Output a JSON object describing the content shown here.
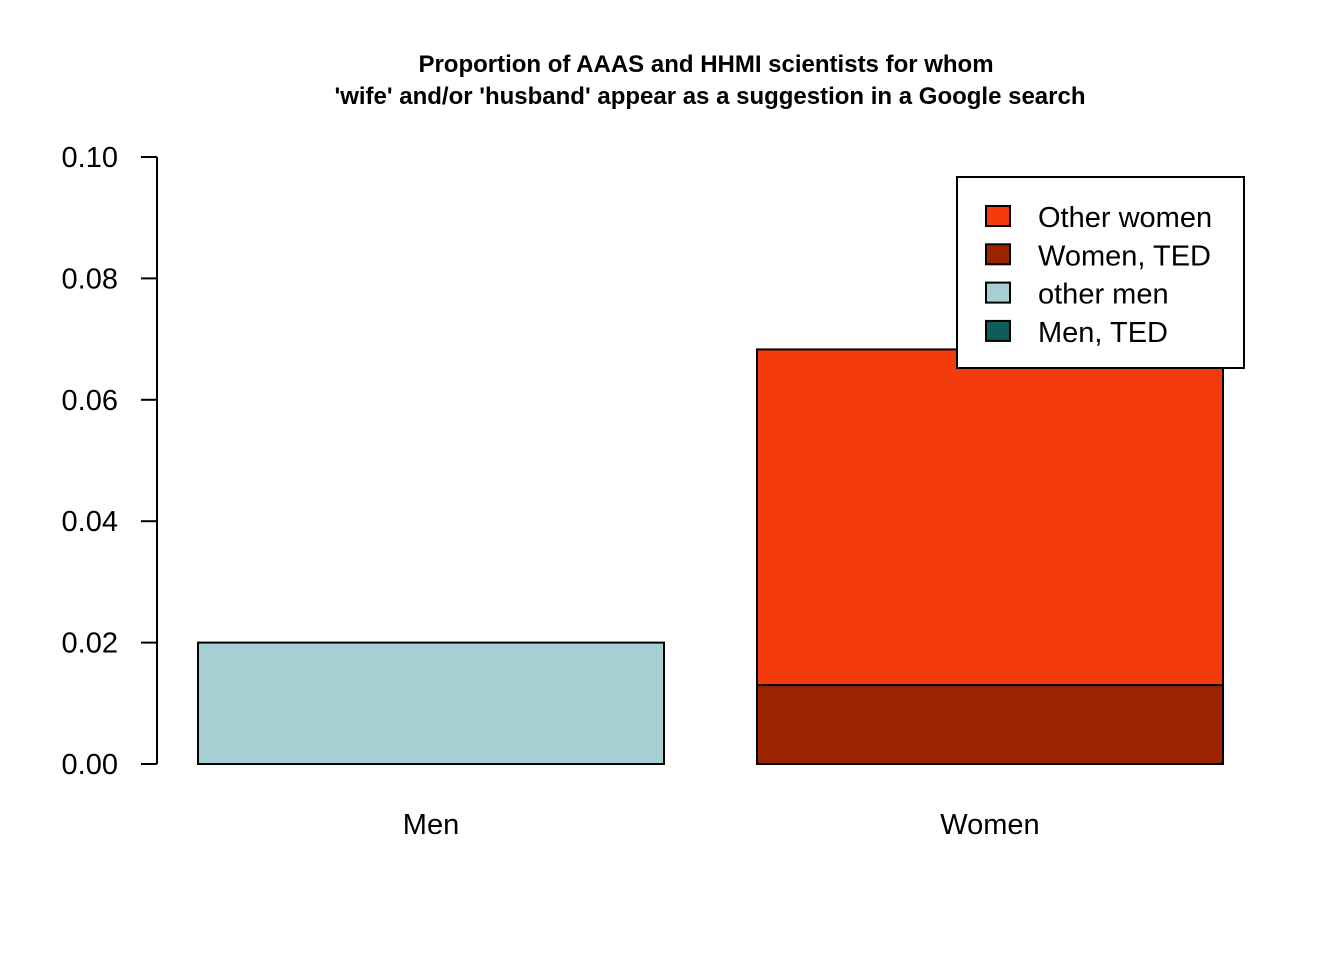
{
  "chart_data": {
    "type": "bar",
    "stacked": true,
    "title_line1": "Proportion of AAAS and HHMI scientists for whom",
    "title_line2": "'wife' and/or 'husband' appear as a suggestion in a Google search",
    "xlabel": "",
    "ylabel": "",
    "categories": [
      "Men",
      "Women"
    ],
    "ylim": [
      0,
      0.1
    ],
    "yticks": [
      "0.00",
      "0.02",
      "0.04",
      "0.06",
      "0.08",
      "0.10"
    ],
    "ytick_values": [
      0,
      0.02,
      0.04,
      0.06,
      0.08,
      0.1
    ],
    "grid": false,
    "legend_position": "top-right",
    "series": [
      {
        "name": "Men, TED",
        "color": "#0f5c5c",
        "values": [
          0,
          0
        ]
      },
      {
        "name": "other men",
        "color": "#a5d0d3",
        "values": [
          0.02,
          0
        ]
      },
      {
        "name": "Women, TED",
        "color": "#9b2400",
        "values": [
          0,
          0.013
        ]
      },
      {
        "name": "Other women",
        "color": "#f43b0b",
        "values": [
          0,
          0.0553
        ]
      }
    ],
    "legend_order": [
      "Other women",
      "Women, TED",
      "other men",
      "Men, TED"
    ]
  }
}
